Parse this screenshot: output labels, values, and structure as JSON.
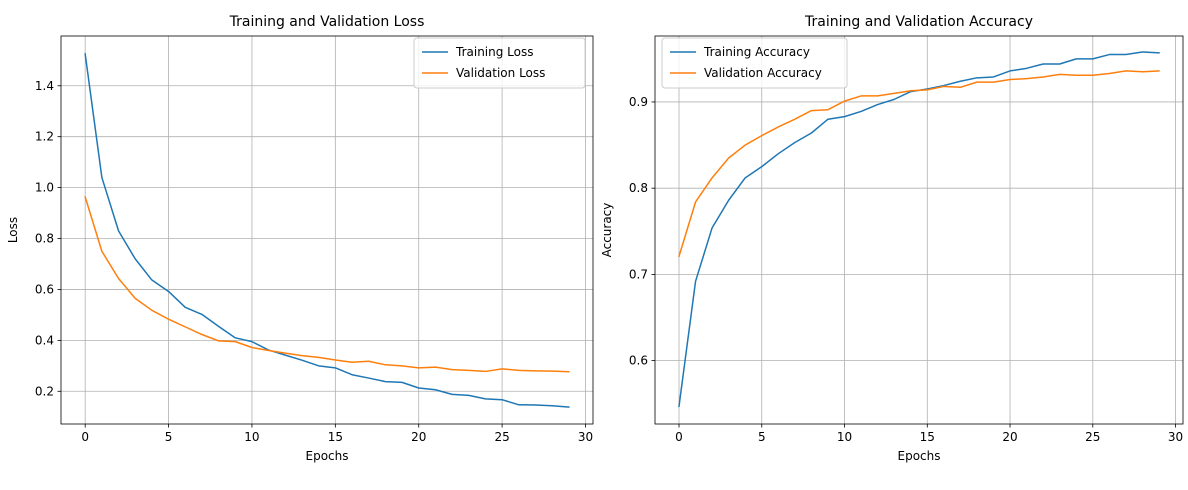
{
  "chart_data": [
    {
      "type": "line",
      "title": "Training and Validation Loss",
      "xlabel": "Epochs",
      "ylabel": "Loss",
      "xlim": [
        -1.45,
        30.45
      ],
      "ylim": [
        0.0715,
        1.5955
      ],
      "xticks": [
        0,
        5,
        10,
        15,
        20,
        25,
        30
      ],
      "yticks": [
        0.2,
        0.4,
        0.6,
        0.8,
        1.0,
        1.2,
        1.4
      ],
      "ytick_labels": [
        "0.2",
        "0.4",
        "0.6",
        "0.8",
        "1.0",
        "1.2",
        "1.4"
      ],
      "grid": true,
      "legend_position": "top-right",
      "x": [
        0,
        1,
        2,
        3,
        4,
        5,
        6,
        7,
        8,
        9,
        10,
        11,
        12,
        13,
        14,
        15,
        16,
        17,
        18,
        19,
        20,
        21,
        22,
        23,
        24,
        25,
        26,
        27,
        28,
        29
      ],
      "series": [
        {
          "name": "Training Loss",
          "color": "#1f77b4",
          "values": [
            1.525,
            1.04,
            0.83,
            0.72,
            0.637,
            0.592,
            0.53,
            0.502,
            0.455,
            0.41,
            0.395,
            0.362,
            0.342,
            0.322,
            0.3,
            0.292,
            0.265,
            0.252,
            0.238,
            0.235,
            0.213,
            0.206,
            0.188,
            0.184,
            0.17,
            0.167,
            0.147,
            0.146,
            0.143,
            0.138
          ]
        },
        {
          "name": "Validation Loss",
          "color": "#ff7f0e",
          "values": [
            0.963,
            0.75,
            0.643,
            0.565,
            0.518,
            0.483,
            0.453,
            0.423,
            0.398,
            0.395,
            0.372,
            0.36,
            0.35,
            0.34,
            0.333,
            0.323,
            0.314,
            0.318,
            0.304,
            0.3,
            0.292,
            0.295,
            0.285,
            0.282,
            0.278,
            0.288,
            0.282,
            0.28,
            0.279,
            0.277
          ]
        }
      ]
    },
    {
      "type": "line",
      "title": "Training and Validation Accuracy",
      "xlabel": "Epochs",
      "ylabel": "Accuracy",
      "xlim": [
        -1.45,
        30.45
      ],
      "ylim": [
        0.5265,
        0.9765
      ],
      "xticks": [
        0,
        5,
        10,
        15,
        20,
        25,
        30
      ],
      "yticks": [
        0.6,
        0.7,
        0.8,
        0.9
      ],
      "ytick_labels": [
        "0.6",
        "0.7",
        "0.8",
        "0.9"
      ],
      "grid": true,
      "legend_position": "top-left",
      "x": [
        0,
        1,
        2,
        3,
        4,
        5,
        6,
        7,
        8,
        9,
        10,
        11,
        12,
        13,
        14,
        15,
        16,
        17,
        18,
        19,
        20,
        21,
        22,
        23,
        24,
        25,
        26,
        27,
        28,
        29
      ],
      "series": [
        {
          "name": "Training Accuracy",
          "color": "#1f77b4",
          "values": [
            0.547,
            0.692,
            0.754,
            0.786,
            0.812,
            0.825,
            0.84,
            0.853,
            0.864,
            0.88,
            0.883,
            0.889,
            0.897,
            0.903,
            0.912,
            0.915,
            0.919,
            0.924,
            0.928,
            0.929,
            0.936,
            0.939,
            0.944,
            0.944,
            0.95,
            0.95,
            0.955,
            0.955,
            0.958,
            0.957
          ]
        },
        {
          "name": "Validation Accuracy",
          "color": "#ff7f0e",
          "values": [
            0.721,
            0.784,
            0.812,
            0.835,
            0.85,
            0.861,
            0.871,
            0.88,
            0.89,
            0.891,
            0.901,
            0.907,
            0.907,
            0.91,
            0.913,
            0.914,
            0.918,
            0.917,
            0.923,
            0.923,
            0.926,
            0.927,
            0.929,
            0.932,
            0.931,
            0.931,
            0.933,
            0.936,
            0.935,
            0.936
          ]
        }
      ]
    }
  ]
}
